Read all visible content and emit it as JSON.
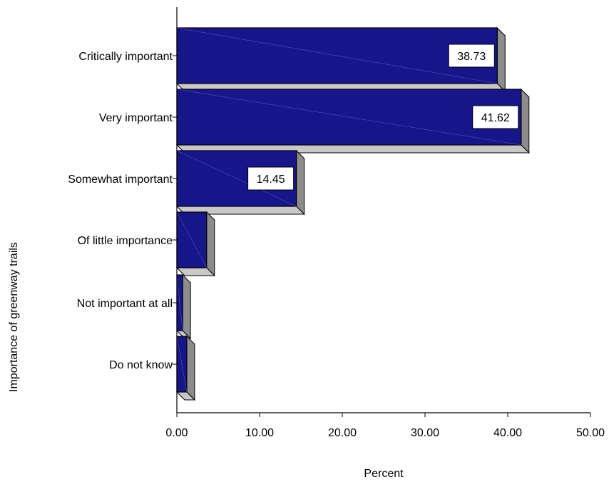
{
  "chart_data": {
    "type": "bar",
    "orientation": "horizontal",
    "three_d": true,
    "title": "",
    "xlabel": "Percent",
    "ylabel": "Importance of greenway trails",
    "categories": [
      "Critically important",
      "Very important",
      "Somewhat important",
      "Of little importance",
      "Not important at all",
      "Do not know"
    ],
    "values": [
      38.73,
      41.62,
      14.45,
      3.6,
      0.7,
      1.2
    ],
    "data_labels": [
      "38.73",
      "41.62",
      "14.45",
      "",
      "",
      ""
    ],
    "xlim": [
      0,
      50
    ],
    "xticks": [
      0,
      10,
      20,
      30,
      40,
      50
    ],
    "xtick_labels": [
      "0.00",
      "10.00",
      "20.00",
      "30.00",
      "40.00",
      "50.00"
    ],
    "grid": false,
    "legend": "none",
    "colors": {
      "bar_front": "#16168a",
      "bar_side": "#8c8c8c",
      "bar_top": "#c8c8c8",
      "bar_edge": "#000000",
      "label_bg": "#ffffff"
    }
  }
}
